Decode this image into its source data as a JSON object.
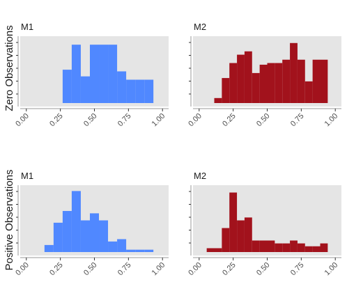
{
  "chart_data": {
    "type": "bar",
    "chart_kind": "histogram-grid",
    "rows": [
      {
        "label": "Zero Observations",
        "panels": [
          {
            "title": "M1",
            "color": "#5088FF",
            "bin_width": 0.0667,
            "bins": [
              {
                "x0": 0.2667,
                "x1": 0.3333,
                "value": 2
              },
              {
                "x0": 0.3333,
                "x1": 0.4,
                "value": 3.5
              },
              {
                "x0": 0.4,
                "x1": 0.4667,
                "value": 1.6
              },
              {
                "x0": 0.4667,
                "x1": 0.5333,
                "value": 3.5
              },
              {
                "x0": 0.5333,
                "x1": 0.6,
                "value": 3.5
              },
              {
                "x0": 0.6,
                "x1": 0.6667,
                "value": 3.5
              },
              {
                "x0": 0.6667,
                "x1": 0.7333,
                "value": 1.9
              },
              {
                "x0": 0.7333,
                "x1": 0.8,
                "value": 1.4
              },
              {
                "x0": 0.8,
                "x1": 0.8667,
                "value": 1.4
              },
              {
                "x0": 0.8667,
                "x1": 0.9333,
                "value": 1.4
              }
            ],
            "ylim": [
              0,
              3.8
            ]
          },
          {
            "title": "M2",
            "color": "#A2121C",
            "bin_width": 0.0556,
            "bins": [
              {
                "x0": 0.1111,
                "x1": 0.1667,
                "value": 0.3
              },
              {
                "x0": 0.1667,
                "x1": 0.2222,
                "value": 1.5
              },
              {
                "x0": 0.2222,
                "x1": 0.2778,
                "value": 2.4
              },
              {
                "x0": 0.2778,
                "x1": 0.3333,
                "value": 2.9
              },
              {
                "x0": 0.3333,
                "x1": 0.3889,
                "value": 3.1
              },
              {
                "x0": 0.3889,
                "x1": 0.4444,
                "value": 1.8
              },
              {
                "x0": 0.4444,
                "x1": 0.5,
                "value": 2.3
              },
              {
                "x0": 0.5,
                "x1": 0.5556,
                "value": 2.4
              },
              {
                "x0": 0.5556,
                "x1": 0.6111,
                "value": 2.4
              },
              {
                "x0": 0.6111,
                "x1": 0.6667,
                "value": 2.6
              },
              {
                "x0": 0.6667,
                "x1": 0.7222,
                "value": 3.6
              },
              {
                "x0": 0.7222,
                "x1": 0.7778,
                "value": 2.6
              },
              {
                "x0": 0.7778,
                "x1": 0.8333,
                "value": 1.3
              },
              {
                "x0": 0.8333,
                "x1": 0.8889,
                "value": 2.6
              },
              {
                "x0": 0.8889,
                "x1": 0.9444,
                "value": 2.6
              }
            ],
            "ylim": [
              0,
              3.8
            ]
          }
        ]
      },
      {
        "label": "Positive Observations",
        "panels": [
          {
            "title": "M1",
            "color": "#5088FF",
            "bin_width": 0.0667,
            "bins": [
              {
                "x0": 0.1333,
                "x1": 0.2,
                "value": 0.6
              },
              {
                "x0": 0.2,
                "x1": 0.2667,
                "value": 2.5
              },
              {
                "x0": 0.2667,
                "x1": 0.3333,
                "value": 3.5
              },
              {
                "x0": 0.3333,
                "x1": 0.4,
                "value": 5.2
              },
              {
                "x0": 0.4,
                "x1": 0.4667,
                "value": 2.7
              },
              {
                "x0": 0.4667,
                "x1": 0.5333,
                "value": 3.3
              },
              {
                "x0": 0.5333,
                "x1": 0.6,
                "value": 2.7
              },
              {
                "x0": 0.6,
                "x1": 0.6667,
                "value": 0.9
              },
              {
                "x0": 0.6667,
                "x1": 0.7333,
                "value": 1.1
              },
              {
                "x0": 0.7333,
                "x1": 0.8,
                "value": 0.2
              },
              {
                "x0": 0.8,
                "x1": 0.8667,
                "value": 0.2
              },
              {
                "x0": 0.8667,
                "x1": 0.9333,
                "value": 0.2
              }
            ],
            "ylim": [
              0,
              5.4
            ]
          },
          {
            "title": "M2",
            "color": "#A2121C",
            "bin_width": 0.0556,
            "bins": [
              {
                "x0": 0.0556,
                "x1": 0.1111,
                "value": 0.4
              },
              {
                "x0": 0.1111,
                "x1": 0.1667,
                "value": 0.4
              },
              {
                "x0": 0.1667,
                "x1": 0.2222,
                "value": 2.5
              },
              {
                "x0": 0.2222,
                "x1": 0.2778,
                "value": 6.2
              },
              {
                "x0": 0.2778,
                "x1": 0.3333,
                "value": 3.3
              },
              {
                "x0": 0.3333,
                "x1": 0.3889,
                "value": 3.6
              },
              {
                "x0": 0.3889,
                "x1": 0.4444,
                "value": 1.2
              },
              {
                "x0": 0.4444,
                "x1": 0.5,
                "value": 1.2
              },
              {
                "x0": 0.5,
                "x1": 0.5556,
                "value": 1.2
              },
              {
                "x0": 0.5556,
                "x1": 0.6111,
                "value": 0.9
              },
              {
                "x0": 0.6111,
                "x1": 0.6667,
                "value": 0.9
              },
              {
                "x0": 0.6667,
                "x1": 0.7222,
                "value": 1.2
              },
              {
                "x0": 0.7222,
                "x1": 0.7778,
                "value": 0.9
              },
              {
                "x0": 0.7778,
                "x1": 0.8333,
                "value": 0.6
              },
              {
                "x0": 0.8333,
                "x1": 0.8889,
                "value": 0.6
              },
              {
                "x0": 0.8889,
                "x1": 0.9444,
                "value": 0.9
              }
            ],
            "ylim": [
              0,
              6.6
            ]
          }
        ]
      }
    ],
    "xlim": [
      0,
      1
    ],
    "x_ticks": [
      0,
      0.25,
      0.5,
      0.75,
      1
    ],
    "x_tick_labels": [
      "0.00",
      "0.25",
      "0.50",
      "0.75",
      "1.00"
    ],
    "grid": false,
    "panel_background": "#E5E5E5"
  }
}
